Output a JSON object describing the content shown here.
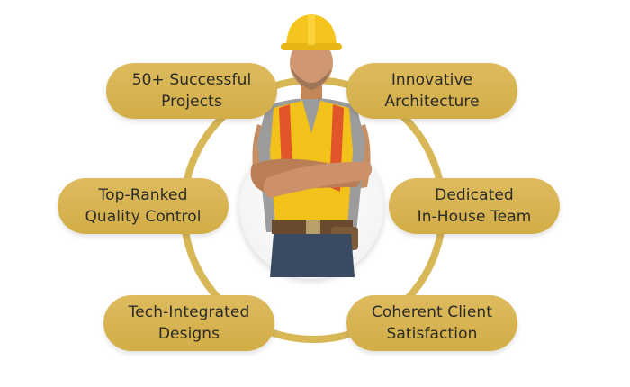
{
  "diagram": {
    "center_image": "construction-worker-illustration",
    "colors": {
      "pill": "#d6b24f",
      "ring": "#d8b757",
      "text": "#2a2a2a"
    },
    "items": [
      {
        "text": "50+ Successful\nProjects"
      },
      {
        "text": "Innovative\nArchitecture"
      },
      {
        "text": "Top-Ranked\nQuality Control"
      },
      {
        "text": "Dedicated\nIn-House Team"
      },
      {
        "text": "Tech-Integrated\nDesigns"
      },
      {
        "text": "Coherent Client\nSatisfaction"
      }
    ]
  }
}
